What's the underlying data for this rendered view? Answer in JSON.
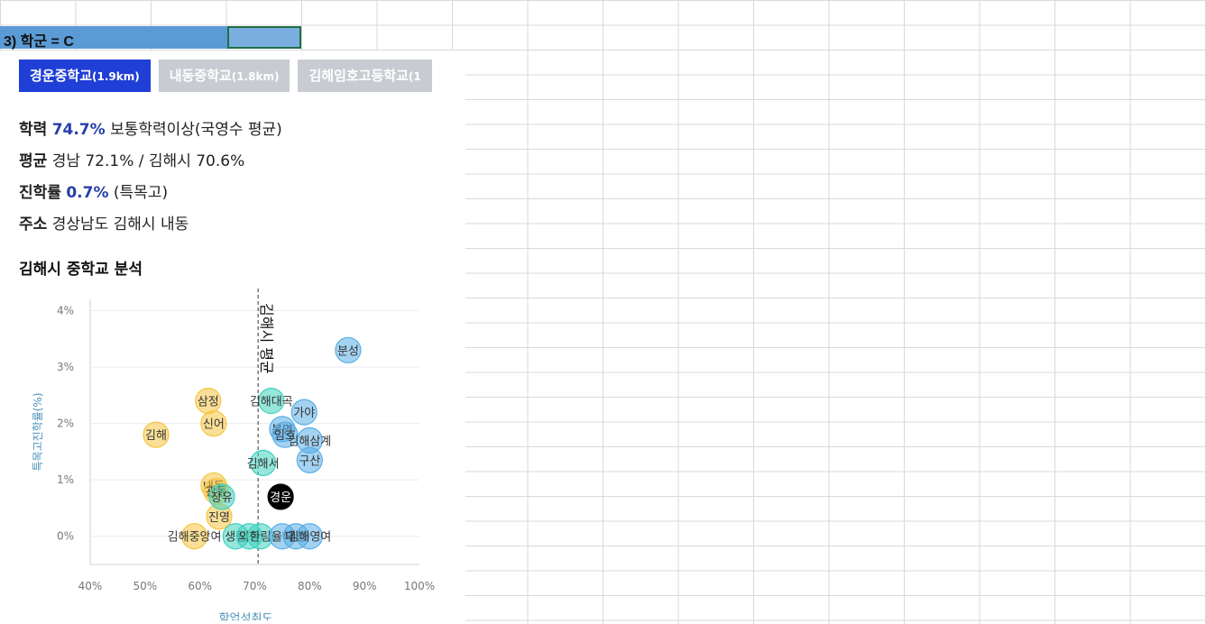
{
  "section": {
    "title": "3) 학군 = C"
  },
  "tabs": [
    {
      "name": "경운중학교",
      "dist": "(1.9km)",
      "active": true
    },
    {
      "name": "내동중학교",
      "dist": "(1.8km)",
      "active": false
    },
    {
      "name": "김해임호고등학교",
      "dist": "(1",
      "active": false
    }
  ],
  "info": {
    "achievement": {
      "label": "학력",
      "value": "74.7%",
      "desc": "보통학력이상(국영수 평균)"
    },
    "average": {
      "label": "평균",
      "value": "경남 72.1% / 김해시 70.6%"
    },
    "advancement": {
      "label": "진학률",
      "value": "0.7%",
      "desc": "(특목고)"
    },
    "address": {
      "label": "주소",
      "value": "경상남도 김해시 내동"
    }
  },
  "analysis_title": "김해시 중학교 분석",
  "colors": {
    "yellow": "#f5c542",
    "teal": "#3fd1c0",
    "blue": "#5aaee6",
    "highlight": "#000000",
    "tab_active": "#1f3fd6",
    "tab_inactive": "#c8cbd1",
    "section_bar": "#5b9bd5"
  },
  "chart_data": {
    "type": "scatter",
    "xlabel": "학업성취도",
    "ylabel": "특목고진학률(%)",
    "xlim": [
      40,
      100
    ],
    "ylim": [
      -0.5,
      4.2
    ],
    "x_ticks": [
      "40%",
      "50%",
      "60%",
      "70%",
      "80%",
      "90%",
      "100%"
    ],
    "y_ticks": [
      "0%",
      "1%",
      "2%",
      "3%",
      "4%"
    ],
    "reference_line": {
      "label": "김해시 평균",
      "x": 70.6
    },
    "points": [
      {
        "label": "김해",
        "x": 52,
        "y": 1.8,
        "color": "yellow"
      },
      {
        "label": "삼정",
        "x": 61.5,
        "y": 2.4,
        "color": "yellow"
      },
      {
        "label": "신어",
        "x": 62.5,
        "y": 2.0,
        "color": "yellow"
      },
      {
        "label": "내동",
        "x": 62.5,
        "y": 0.9,
        "color": "yellow"
      },
      {
        "label": "관동",
        "x": 63,
        "y": 0.8,
        "color": "yellow"
      },
      {
        "label": "진영",
        "x": 63.5,
        "y": 0.35,
        "color": "yellow"
      },
      {
        "label": "김해중앙여",
        "x": 59,
        "y": 0.0,
        "color": "yellow"
      },
      {
        "label": "장유",
        "x": 64,
        "y": 0.7,
        "color": "teal"
      },
      {
        "label": "생림",
        "x": 66.5,
        "y": 0.0,
        "color": "teal"
      },
      {
        "label": "외동",
        "x": 69,
        "y": 0.0,
        "color": "teal"
      },
      {
        "label": "한림",
        "x": 71,
        "y": 0.0,
        "color": "teal"
      },
      {
        "label": "김해서",
        "x": 71.5,
        "y": 1.3,
        "color": "teal"
      },
      {
        "label": "김해대곡",
        "x": 73,
        "y": 2.4,
        "color": "teal"
      },
      {
        "label": "분성",
        "x": 87,
        "y": 3.3,
        "color": "blue"
      },
      {
        "label": "가야",
        "x": 79,
        "y": 2.2,
        "color": "blue"
      },
      {
        "label": "봉명",
        "x": 75,
        "y": 1.9,
        "color": "blue"
      },
      {
        "label": "임호",
        "x": 75.5,
        "y": 1.8,
        "color": "blue"
      },
      {
        "label": "김해삼계",
        "x": 80,
        "y": 1.7,
        "color": "blue"
      },
      {
        "label": "구산",
        "x": 80,
        "y": 1.35,
        "color": "blue"
      },
      {
        "label": "율하",
        "x": 75,
        "y": 0.0,
        "color": "blue"
      },
      {
        "label": "대청",
        "x": 77.5,
        "y": 0.0,
        "color": "blue"
      },
      {
        "label": "김해영여",
        "x": 80,
        "y": 0.0,
        "color": "blue"
      },
      {
        "label": "경운",
        "x": 74.7,
        "y": 0.7,
        "color": "highlight"
      }
    ]
  }
}
